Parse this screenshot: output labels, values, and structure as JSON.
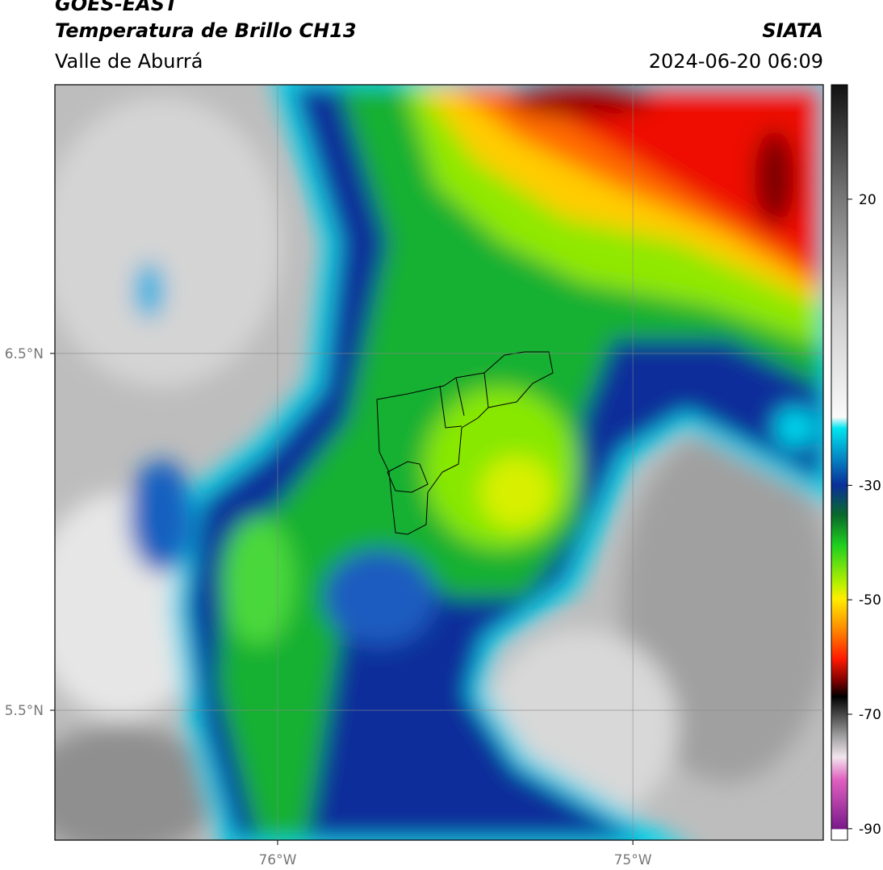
{
  "header": {
    "satellite": "GOES-EAST",
    "product": "Temperatura de Brillo CH13",
    "region": "Valle de Aburrá",
    "source": "SIATA",
    "datetime": "2024-06-20 06:09"
  },
  "map": {
    "xlim": [
      -76.627,
      -74.464
    ],
    "ylim": [
      5.136,
      7.253
    ],
    "xticks": [
      {
        "value": -76,
        "label": "76°W"
      },
      {
        "value": -75,
        "label": "75°W"
      }
    ],
    "yticks": [
      {
        "value": 6.5,
        "label": "6.5°N"
      },
      {
        "value": 5.5,
        "label": "5.5°N"
      }
    ],
    "grid": true
  },
  "colorbar": {
    "lim": [
      -92,
      40
    ],
    "ticks": [
      20,
      -30,
      -50,
      -70,
      -90
    ]
  }
}
